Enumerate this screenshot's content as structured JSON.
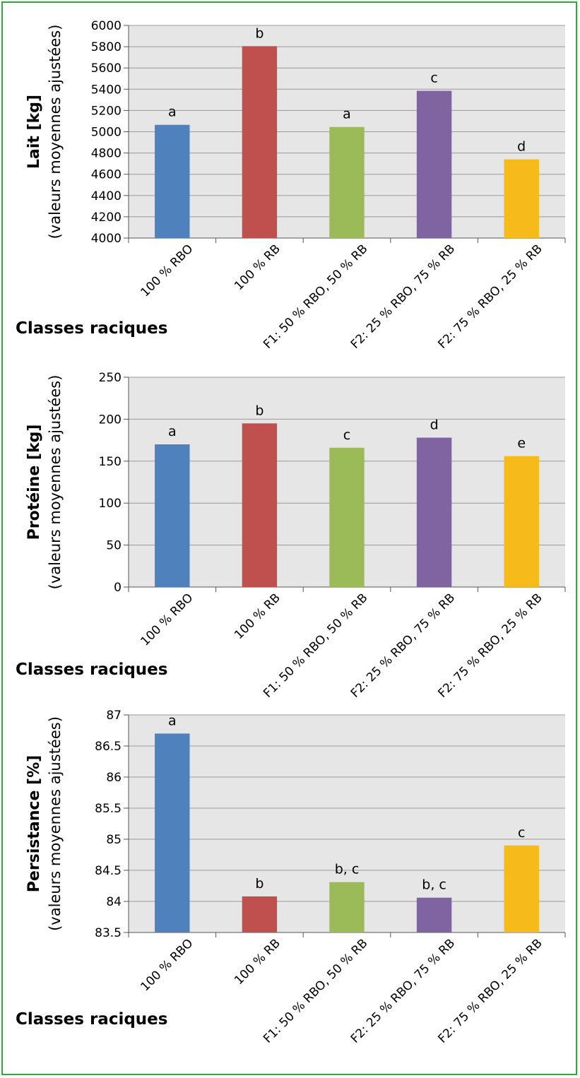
{
  "chart_data": [
    {
      "type": "bar",
      "ylabel_bold": "Lait [kg]",
      "ylabel_sub": "(valeurs moyennes ajustées)",
      "xlabel": "Classes raciques",
      "ylim": [
        4000,
        6000
      ],
      "yticks": [
        "4000",
        "4200",
        "4400",
        "4600",
        "4800",
        "5000",
        "5200",
        "5400",
        "5600",
        "5800",
        "6000"
      ],
      "categories": [
        "100 % RBO",
        "100 % RB",
        "F1: 50 % RBO, 50 % RB",
        "F2: 25 % RBO, 75 % RB",
        "F2: 75 % RBO, 25 % RB"
      ],
      "values": [
        5065,
        5805,
        5045,
        5385,
        4740
      ],
      "letters": [
        "a",
        "b",
        "a",
        "c",
        "d"
      ],
      "grid": true
    },
    {
      "type": "bar",
      "ylabel_bold": "Protéine [kg]",
      "ylabel_sub": "(valeurs moyennes ajustées)",
      "xlabel": "Classes raciques",
      "ylim": [
        0,
        250
      ],
      "yticks": [
        "0",
        "50",
        "100",
        "150",
        "200",
        "250"
      ],
      "categories": [
        "100 % RBO",
        "100 % RB",
        "F1: 50 % RBO, 50 % RB",
        "F2: 25 % RBO, 75 % RB",
        "F2: 75 % RBO, 25 % RB"
      ],
      "values": [
        170,
        195,
        166,
        178,
        156
      ],
      "letters": [
        "a",
        "b",
        "c",
        "d",
        "e"
      ],
      "grid": true
    },
    {
      "type": "bar",
      "ylabel_bold": "Persistance [%]",
      "ylabel_sub": "(valeurs moyennes ajustées)",
      "xlabel": "Classes raciques",
      "ylim": [
        83.5,
        87
      ],
      "yticks": [
        "83.5",
        "84",
        "84.5",
        "85",
        "85.5",
        "86",
        "86.5",
        "87"
      ],
      "categories": [
        "100 % RBO",
        "100 % RB",
        "F1: 50 % RBO, 50 % RB",
        "F2: 25 % RBO, 75 % RB",
        "F2: 75 % RBO, 25 % RB"
      ],
      "values": [
        86.7,
        84.08,
        84.31,
        84.06,
        84.9
      ],
      "letters": [
        "a",
        "b",
        "b, c",
        "b, c",
        "c"
      ],
      "grid": true
    }
  ],
  "colors": {
    "bars": [
      "#4f81bd",
      "#c0504d",
      "#9bbb59",
      "#8064a2",
      "#f6bb1a"
    ],
    "plot_background": "#e6e6e6",
    "grid": "#9a9a9a",
    "frame": "#2eaa3a"
  }
}
